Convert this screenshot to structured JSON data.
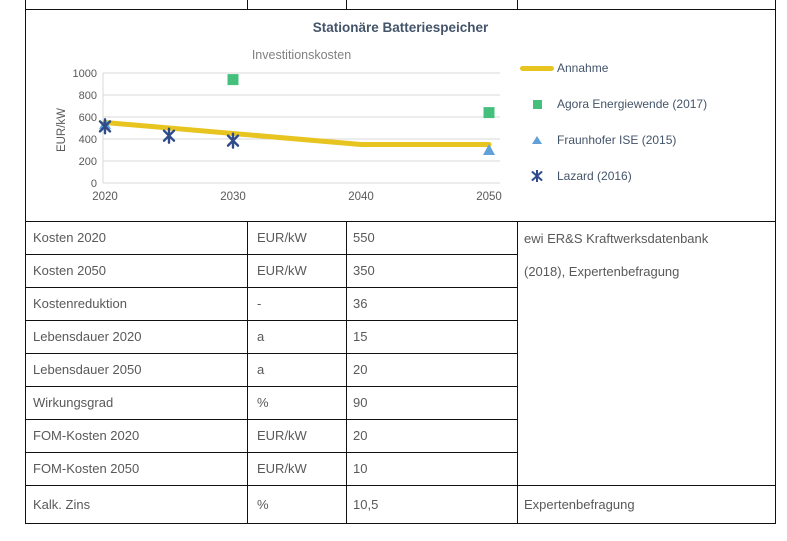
{
  "document": {
    "section_title": "Stationäre Batteriespeicher"
  },
  "chart_data": {
    "type": "line",
    "title": "Stationäre Batteriespeicher",
    "subtitle": "Investitionskosten",
    "xlabel": "",
    "ylabel": "EUR/kW",
    "ylim": [
      0,
      1000
    ],
    "yticks": [
      0,
      200,
      400,
      600,
      800,
      1000
    ],
    "xticks": [
      2020,
      2030,
      2040,
      2050
    ],
    "grid": true,
    "legend_position": "right",
    "grid_color": "#D9D9D9",
    "tick_color": "#595959",
    "series": [
      {
        "name": "Annahme",
        "type": "line",
        "marker": "none",
        "color": "#E7C41F",
        "points": [
          [
            2020,
            550
          ],
          [
            2040,
            350
          ],
          [
            2050,
            350
          ]
        ]
      },
      {
        "name": "Agora Energiewende (2017)",
        "type": "scatter",
        "marker": "square",
        "color": "#45C07C",
        "points": [
          [
            2030,
            940
          ],
          [
            2050,
            640
          ]
        ]
      },
      {
        "name": "Fraunhofer ISE (2015)",
        "type": "scatter",
        "marker": "triangle",
        "color": "#61A0D8",
        "points": [
          [
            2020,
            535
          ],
          [
            2050,
            300
          ]
        ]
      },
      {
        "name": "Lazard (2016)",
        "type": "scatter",
        "marker": "asterisk",
        "color": "#2F4B8A",
        "points": [
          [
            2020,
            515
          ],
          [
            2025,
            430
          ],
          [
            2030,
            385
          ]
        ]
      }
    ]
  },
  "table": {
    "rows": [
      {
        "label": "Kosten 2020",
        "unit": "EUR/kW",
        "value": "550"
      },
      {
        "label": "Kosten 2050",
        "unit": "EUR/kW",
        "value": "350"
      },
      {
        "label": "Kostenreduktion",
        "unit": "-",
        "value": "36"
      },
      {
        "label": "Lebensdauer 2020",
        "unit": "a",
        "value": "15"
      },
      {
        "label": "Lebensdauer 2050",
        "unit": "a",
        "value": "20"
      },
      {
        "label": "Wirkungsgrad",
        "unit": "%",
        "value": "90"
      },
      {
        "label": "FOM-Kosten 2020",
        "unit": "EUR/kW",
        "value": "20"
      },
      {
        "label": "FOM-Kosten 2050",
        "unit": "EUR/kW",
        "value": "10"
      },
      {
        "label": "Kalk. Zins",
        "unit": "%",
        "value": "10,5"
      }
    ],
    "source_main": "ewi ER&S Kraftwerksdatenbank (2018), Expertenbefragung",
    "source_last": "Expertenbefragung"
  }
}
